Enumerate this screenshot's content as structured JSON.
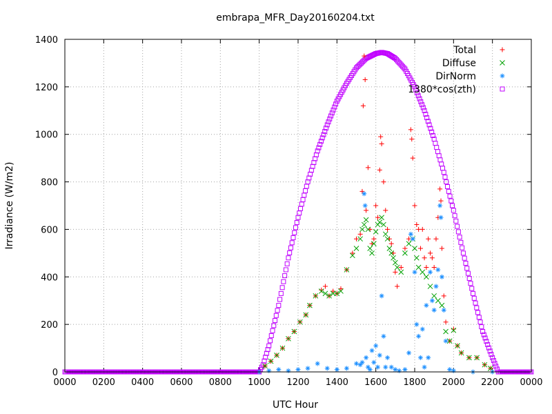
{
  "chart_data": {
    "type": "scatter",
    "title": "embrapa_MFR_Day20160204.txt",
    "xlabel": "UTC Hour",
    "ylabel": "Irradiance (W/m2)",
    "xlim": [
      0,
      2400
    ],
    "ylim": [
      0,
      1400
    ],
    "x_tick_labels": [
      "0000",
      "0200",
      "0400",
      "0600",
      "0800",
      "1000",
      "1200",
      "1400",
      "1600",
      "1800",
      "2000",
      "2200",
      "0000"
    ],
    "y_tick_labels": [
      "0",
      "200",
      "400",
      "600",
      "800",
      "1000",
      "1200",
      "1400"
    ],
    "grid": true,
    "legend_position": "top-right",
    "series": [
      {
        "name": "Total",
        "marker": "plus",
        "color": "#ff0000",
        "points": [
          [
            1030,
            25
          ],
          [
            1060,
            45
          ],
          [
            1090,
            70
          ],
          [
            1120,
            100
          ],
          [
            1150,
            140
          ],
          [
            1180,
            170
          ],
          [
            1210,
            210
          ],
          [
            1240,
            240
          ],
          [
            1260,
            280
          ],
          [
            1290,
            320
          ],
          [
            1320,
            345
          ],
          [
            1340,
            360
          ],
          [
            1360,
            320
          ],
          [
            1380,
            340
          ],
          [
            1400,
            330
          ],
          [
            1420,
            350
          ],
          [
            1450,
            430
          ],
          [
            1480,
            500
          ],
          [
            1500,
            560
          ],
          [
            1520,
            580
          ],
          [
            1530,
            760
          ],
          [
            1535,
            1120
          ],
          [
            1540,
            1330
          ],
          [
            1545,
            1230
          ],
          [
            1550,
            680
          ],
          [
            1560,
            860
          ],
          [
            1570,
            600
          ],
          [
            1580,
            540
          ],
          [
            1590,
            560
          ],
          [
            1600,
            700
          ],
          [
            1610,
            650
          ],
          [
            1620,
            850
          ],
          [
            1625,
            990
          ],
          [
            1630,
            960
          ],
          [
            1640,
            800
          ],
          [
            1650,
            680
          ],
          [
            1660,
            600
          ],
          [
            1670,
            560
          ],
          [
            1680,
            540
          ],
          [
            1690,
            500
          ],
          [
            1700,
            420
          ],
          [
            1710,
            360
          ],
          [
            1730,
            440
          ],
          [
            1750,
            520
          ],
          [
            1770,
            560
          ],
          [
            1780,
            1020
          ],
          [
            1785,
            980
          ],
          [
            1790,
            900
          ],
          [
            1800,
            700
          ],
          [
            1810,
            620
          ],
          [
            1820,
            600
          ],
          [
            1830,
            520
          ],
          [
            1840,
            600
          ],
          [
            1850,
            480
          ],
          [
            1860,
            440
          ],
          [
            1870,
            560
          ],
          [
            1880,
            500
          ],
          [
            1890,
            480
          ],
          [
            1900,
            440
          ],
          [
            1910,
            560
          ],
          [
            1920,
            650
          ],
          [
            1930,
            770
          ],
          [
            1935,
            720
          ],
          [
            1940,
            520
          ],
          [
            1950,
            320
          ],
          [
            1960,
            210
          ],
          [
            1980,
            130
          ],
          [
            2000,
            180
          ],
          [
            2020,
            110
          ],
          [
            2040,
            80
          ],
          [
            2080,
            60
          ],
          [
            2120,
            60
          ],
          [
            2160,
            30
          ],
          [
            2190,
            15
          ]
        ]
      },
      {
        "name": "Diffuse",
        "marker": "cross",
        "color": "#00a000",
        "points": [
          [
            1030,
            25
          ],
          [
            1060,
            45
          ],
          [
            1090,
            70
          ],
          [
            1120,
            100
          ],
          [
            1150,
            140
          ],
          [
            1180,
            170
          ],
          [
            1210,
            210
          ],
          [
            1240,
            240
          ],
          [
            1260,
            280
          ],
          [
            1290,
            320
          ],
          [
            1320,
            340
          ],
          [
            1340,
            330
          ],
          [
            1360,
            320
          ],
          [
            1380,
            330
          ],
          [
            1400,
            330
          ],
          [
            1420,
            340
          ],
          [
            1450,
            430
          ],
          [
            1480,
            490
          ],
          [
            1500,
            520
          ],
          [
            1520,
            560
          ],
          [
            1530,
            600
          ],
          [
            1540,
            620
          ],
          [
            1550,
            640
          ],
          [
            1560,
            600
          ],
          [
            1570,
            520
          ],
          [
            1580,
            500
          ],
          [
            1590,
            540
          ],
          [
            1600,
            590
          ],
          [
            1610,
            620
          ],
          [
            1620,
            630
          ],
          [
            1630,
            650
          ],
          [
            1640,
            620
          ],
          [
            1650,
            580
          ],
          [
            1660,
            560
          ],
          [
            1670,
            520
          ],
          [
            1680,
            500
          ],
          [
            1690,
            480
          ],
          [
            1700,
            460
          ],
          [
            1710,
            440
          ],
          [
            1730,
            420
          ],
          [
            1750,
            500
          ],
          [
            1770,
            540
          ],
          [
            1790,
            560
          ],
          [
            1800,
            520
          ],
          [
            1810,
            480
          ],
          [
            1820,
            440
          ],
          [
            1840,
            420
          ],
          [
            1860,
            400
          ],
          [
            1880,
            360
          ],
          [
            1900,
            320
          ],
          [
            1920,
            300
          ],
          [
            1940,
            280
          ],
          [
            1960,
            170
          ],
          [
            1980,
            130
          ],
          [
            2000,
            175
          ],
          [
            2020,
            110
          ],
          [
            2040,
            80
          ],
          [
            2080,
            60
          ],
          [
            2120,
            60
          ],
          [
            2160,
            30
          ],
          [
            2190,
            15
          ]
        ]
      },
      {
        "name": "DirNorm",
        "marker": "star",
        "color": "#1e90ff",
        "points": [
          [
            1000,
            0
          ],
          [
            1050,
            5
          ],
          [
            1100,
            10
          ],
          [
            1150,
            5
          ],
          [
            1200,
            10
          ],
          [
            1250,
            15
          ],
          [
            1300,
            35
          ],
          [
            1350,
            15
          ],
          [
            1400,
            10
          ],
          [
            1450,
            15
          ],
          [
            1500,
            35
          ],
          [
            1520,
            30
          ],
          [
            1530,
            40
          ],
          [
            1540,
            750
          ],
          [
            1545,
            700
          ],
          [
            1550,
            60
          ],
          [
            1560,
            20
          ],
          [
            1570,
            10
          ],
          [
            1580,
            90
          ],
          [
            1590,
            40
          ],
          [
            1600,
            110
          ],
          [
            1610,
            20
          ],
          [
            1620,
            70
          ],
          [
            1630,
            320
          ],
          [
            1640,
            150
          ],
          [
            1650,
            20
          ],
          [
            1660,
            60
          ],
          [
            1680,
            20
          ],
          [
            1700,
            10
          ],
          [
            1720,
            5
          ],
          [
            1750,
            10
          ],
          [
            1770,
            80
          ],
          [
            1780,
            580
          ],
          [
            1790,
            560
          ],
          [
            1800,
            420
          ],
          [
            1810,
            200
          ],
          [
            1820,
            150
          ],
          [
            1830,
            60
          ],
          [
            1840,
            180
          ],
          [
            1850,
            20
          ],
          [
            1860,
            280
          ],
          [
            1870,
            60
          ],
          [
            1880,
            420
          ],
          [
            1890,
            300
          ],
          [
            1900,
            260
          ],
          [
            1910,
            360
          ],
          [
            1920,
            430
          ],
          [
            1930,
            700
          ],
          [
            1935,
            650
          ],
          [
            1940,
            400
          ],
          [
            1950,
            260
          ],
          [
            1960,
            130
          ],
          [
            1980,
            10
          ],
          [
            2000,
            5
          ],
          [
            2100,
            0
          ],
          [
            2200,
            0
          ]
        ]
      },
      {
        "name": "1380*cos(zth)",
        "marker": "square",
        "color": "#c000ff",
        "points": [
          [
            0,
            0
          ],
          [
            1000,
            0
          ],
          [
            1020,
            30
          ],
          [
            1050,
            110
          ],
          [
            1100,
            280
          ],
          [
            1150,
            480
          ],
          [
            1200,
            650
          ],
          [
            1250,
            800
          ],
          [
            1300,
            930
          ],
          [
            1350,
            1040
          ],
          [
            1400,
            1140
          ],
          [
            1450,
            1215
          ],
          [
            1500,
            1280
          ],
          [
            1550,
            1320
          ],
          [
            1600,
            1340
          ],
          [
            1630,
            1345
          ],
          [
            1660,
            1340
          ],
          [
            1700,
            1320
          ],
          [
            1750,
            1275
          ],
          [
            1800,
            1200
          ],
          [
            1850,
            1100
          ],
          [
            1900,
            980
          ],
          [
            1950,
            840
          ],
          [
            2000,
            680
          ],
          [
            2050,
            500
          ],
          [
            2100,
            330
          ],
          [
            2150,
            170
          ],
          [
            2200,
            60
          ],
          [
            2230,
            0
          ],
          [
            2400,
            0
          ]
        ]
      }
    ]
  }
}
